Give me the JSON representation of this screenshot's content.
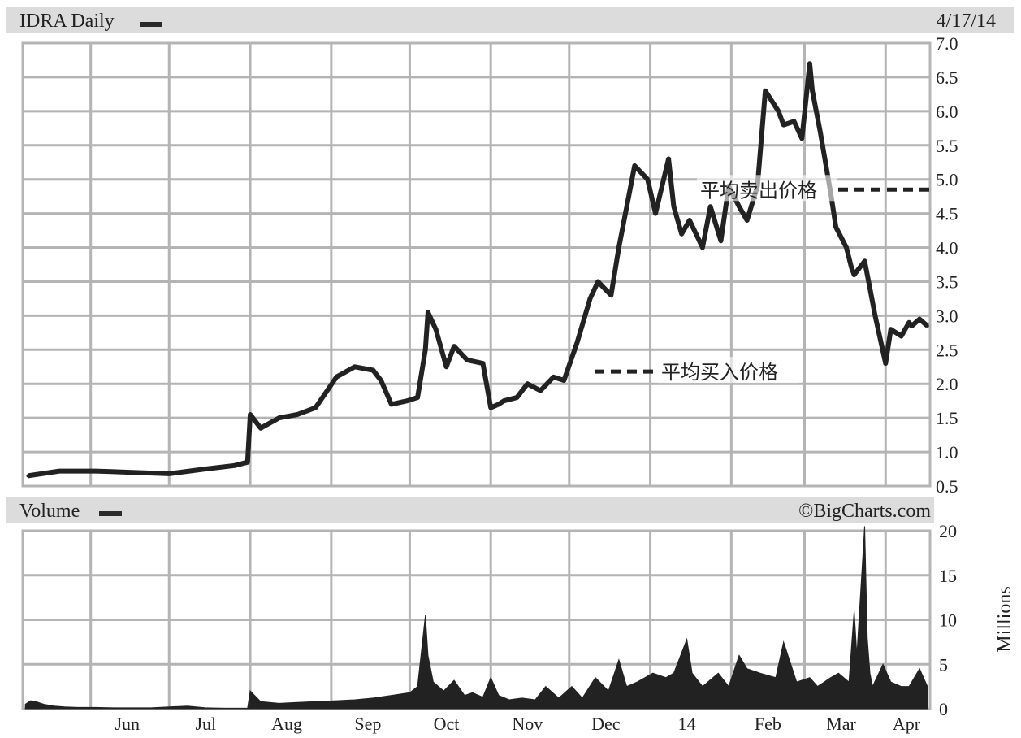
{
  "chart_data": [
    {
      "type": "line",
      "title": "IDRA Daily",
      "date": "4/17/14",
      "ylim": [
        0.5,
        7.0
      ],
      "y_ticks": [
        "7.0",
        "6.5",
        "6.0",
        "5.5",
        "5.0",
        "4.5",
        "4.0",
        "3.5",
        "3.0",
        "2.5",
        "2.0",
        "1.5",
        "1.0",
        "0.5"
      ],
      "x_ticks": [
        "Jun",
        "Jul",
        "Aug",
        "Sep",
        "Oct",
        "Nov",
        "Dec",
        "14",
        "Feb",
        "Mar",
        "Apr"
      ],
      "grid": true,
      "series": [
        {
          "x": [
            "2013-05-08",
            "2013-05-20",
            "2013-06-03",
            "2013-06-17",
            "2013-07-01",
            "2013-07-15",
            "2013-07-26",
            "2013-07-31",
            "2013-08-01",
            "2013-08-05",
            "2013-08-12",
            "2013-08-19",
            "2013-08-26",
            "2013-09-03",
            "2013-09-10",
            "2013-09-17",
            "2013-09-20",
            "2013-09-24",
            "2013-09-30",
            "2013-10-04",
            "2013-10-07",
            "2013-10-08",
            "2013-10-11",
            "2013-10-15",
            "2013-10-18",
            "2013-10-23",
            "2013-10-29",
            "2013-11-01",
            "2013-11-04",
            "2013-11-06",
            "2013-11-11",
            "2013-11-15",
            "2013-11-20",
            "2013-11-25",
            "2013-11-29",
            "2013-12-04",
            "2013-12-09",
            "2013-12-12",
            "2013-12-17",
            "2013-12-20",
            "2013-12-26",
            "2013-12-31",
            "2014-01-03",
            "2014-01-08",
            "2014-01-10",
            "2014-01-13",
            "2014-01-16",
            "2014-01-21",
            "2014-01-24",
            "2014-01-28",
            "2014-01-31",
            "2014-02-04",
            "2014-02-07",
            "2014-02-11",
            "2014-02-14",
            "2014-02-19",
            "2014-02-21",
            "2014-02-25",
            "2014-02-28",
            "2014-03-03",
            "2014-03-04",
            "2014-03-07",
            "2014-03-11",
            "2014-03-13",
            "2014-03-17",
            "2014-03-19",
            "2014-03-20",
            "2014-03-24",
            "2014-03-26",
            "2014-03-28",
            "2014-04-01",
            "2014-04-03",
            "2014-04-07",
            "2014-04-10",
            "2014-04-11",
            "2014-04-14",
            "2014-04-17"
          ],
          "values": [
            0.65,
            0.72,
            0.72,
            0.7,
            0.68,
            0.75,
            0.8,
            0.85,
            1.55,
            1.35,
            1.5,
            1.55,
            1.65,
            2.1,
            2.25,
            2.2,
            2.05,
            1.7,
            1.75,
            1.8,
            2.5,
            3.05,
            2.8,
            2.25,
            2.55,
            2.35,
            2.3,
            1.65,
            1.7,
            1.75,
            1.8,
            2.0,
            1.9,
            2.1,
            2.05,
            2.6,
            3.25,
            3.5,
            3.3,
            4.0,
            5.2,
            5.0,
            4.5,
            5.3,
            4.6,
            4.2,
            4.4,
            4.0,
            4.6,
            4.1,
            4.9,
            4.6,
            4.4,
            4.9,
            6.3,
            6.0,
            5.8,
            5.85,
            5.6,
            6.7,
            6.3,
            5.7,
            4.8,
            4.3,
            4.0,
            3.7,
            3.6,
            3.8,
            3.4,
            3.0,
            2.3,
            2.8,
            2.7,
            2.9,
            2.85,
            2.95,
            2.85
          ]
        }
      ],
      "annotations": [
        {
          "label": "平均卖出价格",
          "value": 4.85
        },
        {
          "label": "平均买入价格",
          "value": 2.18
        }
      ]
    },
    {
      "type": "area",
      "title": "Volume",
      "credit": "©BigCharts.com",
      "ylabel": "Millions",
      "ylim": [
        0,
        20
      ],
      "y_ticks": [
        "20",
        "15",
        "10",
        "5",
        "0"
      ],
      "grid": true,
      "series": [
        {
          "x": [
            "2013-05-07",
            "2013-05-09",
            "2013-05-11",
            "2013-05-14",
            "2013-05-18",
            "2013-05-22",
            "2013-05-27",
            "2013-06-03",
            "2013-06-10",
            "2013-06-17",
            "2013-06-24",
            "2013-07-01",
            "2013-07-08",
            "2013-07-15",
            "2013-07-22",
            "2013-07-31",
            "2013-08-01",
            "2013-08-05",
            "2013-08-12",
            "2013-08-19",
            "2013-08-26",
            "2013-09-03",
            "2013-09-10",
            "2013-09-17",
            "2013-09-24",
            "2013-10-01",
            "2013-10-04",
            "2013-10-07",
            "2013-10-08",
            "2013-10-10",
            "2013-10-14",
            "2013-10-18",
            "2013-10-22",
            "2013-10-25",
            "2013-10-29",
            "2013-11-01",
            "2013-11-04",
            "2013-11-08",
            "2013-11-13",
            "2013-11-18",
            "2013-11-22",
            "2013-11-27",
            "2013-12-02",
            "2013-12-06",
            "2013-12-11",
            "2013-12-16",
            "2013-12-20",
            "2013-12-23",
            "2013-12-27",
            "2014-01-02",
            "2014-01-07",
            "2014-01-10",
            "2014-01-15",
            "2014-01-17",
            "2014-01-21",
            "2014-01-27",
            "2014-01-31",
            "2014-02-04",
            "2014-02-07",
            "2014-02-12",
            "2014-02-18",
            "2014-02-21",
            "2014-02-26",
            "2014-03-03",
            "2014-03-06",
            "2014-03-11",
            "2014-03-14",
            "2014-03-18",
            "2014-03-20",
            "2014-03-21",
            "2014-03-24",
            "2014-03-25",
            "2014-03-26",
            "2014-03-27",
            "2014-03-31",
            "2014-04-03",
            "2014-04-07",
            "2014-04-10",
            "2014-04-14",
            "2014-04-17"
          ],
          "values": [
            0.5,
            0.9,
            0.8,
            0.5,
            0.3,
            0.2,
            0.15,
            0.15,
            0.1,
            0.1,
            0.1,
            0.2,
            0.3,
            0.1,
            0.05,
            0.05,
            2.0,
            0.8,
            0.6,
            0.7,
            0.8,
            0.9,
            1.0,
            1.2,
            1.5,
            1.8,
            2.5,
            10.5,
            6.0,
            3.0,
            2.0,
            3.2,
            1.5,
            1.8,
            1.3,
            3.5,
            1.5,
            1.0,
            1.2,
            1.0,
            2.5,
            1.2,
            2.5,
            1.2,
            3.5,
            2.0,
            5.5,
            2.5,
            3.0,
            4.0,
            3.5,
            4.0,
            7.8,
            4.0,
            2.5,
            4.0,
            2.5,
            6.0,
            4.5,
            4.0,
            3.5,
            7.5,
            3.0,
            3.5,
            2.5,
            3.5,
            4.0,
            3.0,
            11.0,
            6.0,
            20.5,
            8.0,
            4.0,
            2.5,
            5.0,
            3.0,
            2.5,
            2.5,
            4.5,
            2.5
          ]
        }
      ]
    }
  ]
}
